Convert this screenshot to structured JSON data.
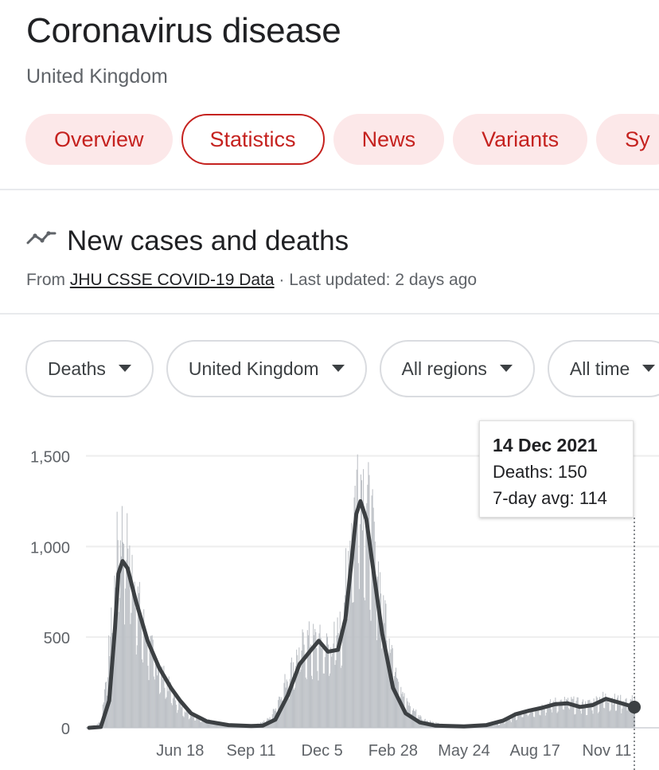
{
  "header": {
    "title": "Coronavirus disease",
    "subtitle": "United Kingdom"
  },
  "tabs": [
    {
      "label": "Overview",
      "active": false
    },
    {
      "label": "Statistics",
      "active": true
    },
    {
      "label": "News",
      "active": false
    },
    {
      "label": "Variants",
      "active": false
    },
    {
      "label": "Sy",
      "active": false
    }
  ],
  "section": {
    "icon": "trend-line-icon",
    "title": "New cases and deaths",
    "source_prefix": "From ",
    "source_link": "JHU CSSE COVID-19 Data",
    "source_suffix": " · Last updated: 2 days ago"
  },
  "filters": [
    {
      "label": "Deaths"
    },
    {
      "label": "United Kingdom"
    },
    {
      "label": "All regions"
    },
    {
      "label": "All time"
    }
  ],
  "tooltip": {
    "date": "14 Dec 2021",
    "deaths_line": "Deaths: 150",
    "avg_line": "7-day avg: 114"
  },
  "colors": {
    "accent": "#c5221f",
    "tab_bg": "#fce8e9",
    "bar": "#bdc1c6",
    "avg_line": "#3c4043"
  },
  "chart_data": {
    "type": "bar",
    "title": "",
    "xlabel": "",
    "ylabel": "",
    "ylim": [
      0,
      1700
    ],
    "yticks": [
      0,
      500,
      1000,
      1500
    ],
    "ytick_labels": [
      "0",
      "500",
      "1,000",
      "1,500"
    ],
    "xtick_labels": [
      "Jun 18",
      "Sep 11",
      "Dec 5",
      "Feb 28",
      "May 24",
      "Aug 17",
      "Nov 11"
    ],
    "xtick_dates": [
      "2020-06-18",
      "2020-09-11",
      "2020-12-05",
      "2021-02-28",
      "2021-05-24",
      "2021-08-17",
      "2021-11-11"
    ],
    "date_range": [
      "2020-03-01",
      "2021-12-14"
    ],
    "series": [
      {
        "name": "Deaths",
        "kind": "bar",
        "note": "daily deaths, approximate weekly levels",
        "weekly_dates": [
          "2020-03-01",
          "2020-03-15",
          "2020-03-29",
          "2020-04-05",
          "2020-04-12",
          "2020-04-19",
          "2020-04-26",
          "2020-05-03",
          "2020-05-17",
          "2020-05-31",
          "2020-06-14",
          "2020-06-28",
          "2020-07-19",
          "2020-08-16",
          "2020-09-13",
          "2020-10-04",
          "2020-10-25",
          "2020-11-15",
          "2020-11-29",
          "2020-12-13",
          "2020-12-27",
          "2021-01-10",
          "2021-01-17",
          "2021-01-24",
          "2021-01-31",
          "2021-02-14",
          "2021-02-28",
          "2021-03-14",
          "2021-04-04",
          "2021-05-02",
          "2021-06-06",
          "2021-07-04",
          "2021-07-25",
          "2021-08-15",
          "2021-09-05",
          "2021-09-26",
          "2021-10-17",
          "2021-11-07",
          "2021-11-28",
          "2021-12-14"
        ],
        "weekly_values": [
          2,
          30,
          600,
          1050,
          1000,
          880,
          720,
          560,
          370,
          250,
          140,
          80,
          40,
          15,
          12,
          50,
          280,
          460,
          450,
          420,
          520,
          1100,
          1350,
          1250,
          1100,
          700,
          380,
          140,
          45,
          12,
          8,
          20,
          70,
          95,
          130,
          140,
          120,
          160,
          140,
          150
        ]
      },
      {
        "name": "7-day avg",
        "kind": "line",
        "dates": [
          "2020-03-01",
          "2020-03-15",
          "2020-03-25",
          "2020-04-01",
          "2020-04-05",
          "2020-04-10",
          "2020-04-16",
          "2020-04-26",
          "2020-05-10",
          "2020-05-24",
          "2020-06-07",
          "2020-06-18",
          "2020-07-01",
          "2020-07-20",
          "2020-08-15",
          "2020-09-11",
          "2020-09-25",
          "2020-10-10",
          "2020-10-25",
          "2020-11-08",
          "2020-11-22",
          "2020-12-01",
          "2020-12-12",
          "2020-12-24",
          "2021-01-02",
          "2021-01-10",
          "2021-01-15",
          "2021-01-20",
          "2021-01-27",
          "2021-02-05",
          "2021-02-15",
          "2021-02-28",
          "2021-03-15",
          "2021-04-01",
          "2021-04-20",
          "2021-05-24",
          "2021-06-20",
          "2021-07-10",
          "2021-07-25",
          "2021-08-10",
          "2021-08-25",
          "2021-09-10",
          "2021-09-25",
          "2021-10-10",
          "2021-10-25",
          "2021-11-10",
          "2021-11-25",
          "2021-12-14"
        ],
        "values": [
          0,
          5,
          150,
          550,
          850,
          920,
          880,
          700,
          480,
          330,
          220,
          150,
          80,
          35,
          15,
          10,
          12,
          45,
          180,
          350,
          430,
          480,
          420,
          430,
          600,
          950,
          1180,
          1250,
          1150,
          850,
          520,
          220,
          80,
          30,
          12,
          8,
          15,
          40,
          75,
          95,
          110,
          130,
          135,
          115,
          125,
          160,
          140,
          114
        ]
      }
    ]
  }
}
